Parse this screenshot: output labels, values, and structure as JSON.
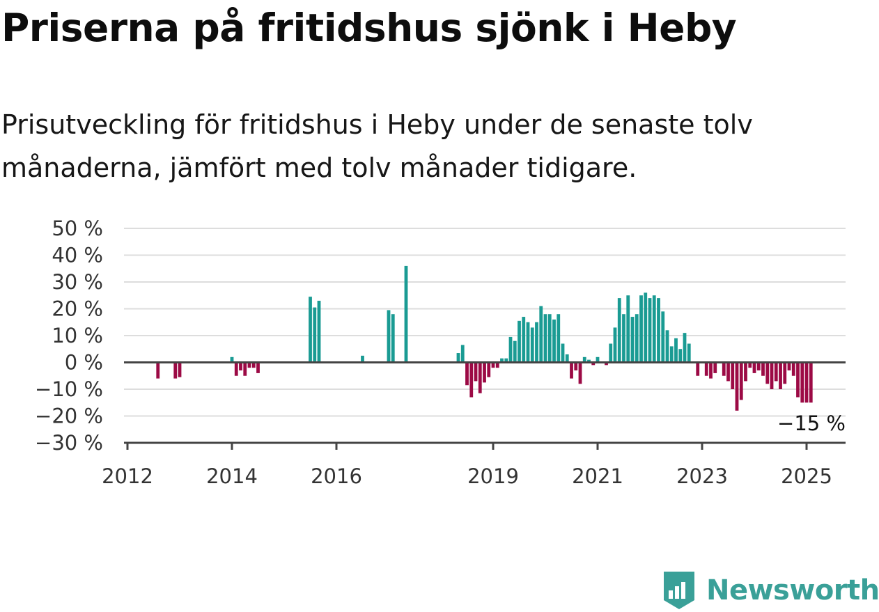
{
  "title": "Priserna på fritidshus sjönk i Heby",
  "subtitle": "Prisutveckling för fritidshus i Heby under de senaste tolv månaderna, jämfört med tolv månader tidigare.",
  "brand": "Newsworthy",
  "colors": {
    "positive": "#1a9b93",
    "negative": "#9c0a45",
    "grid": "#dddddd",
    "axis": "#444444",
    "brand": "#3aa098"
  },
  "chart_data": {
    "type": "bar",
    "x_unit": "month",
    "y_unit": "%",
    "ylim": [
      -30,
      50
    ],
    "yticks": [
      {
        "value": 50,
        "label": "50 %"
      },
      {
        "value": 40,
        "label": "40 %"
      },
      {
        "value": 30,
        "label": "30 %"
      },
      {
        "value": 20,
        "label": "20 %"
      },
      {
        "value": 10,
        "label": "10 %"
      },
      {
        "value": 0,
        "label": "0 %"
      },
      {
        "value": -10,
        "label": "−10 %"
      },
      {
        "value": -20,
        "label": "−20 %"
      },
      {
        "value": -30,
        "label": "−30 %"
      }
    ],
    "xticks": [
      {
        "date": "2012-01",
        "label": "2012"
      },
      {
        "date": "2014-01",
        "label": "2014"
      },
      {
        "date": "2016-01",
        "label": "2016"
      },
      {
        "date": "2019-01",
        "label": "2019"
      },
      {
        "date": "2021-01",
        "label": "2021"
      },
      {
        "date": "2023-01",
        "label": "2023"
      },
      {
        "date": "2025-01",
        "label": "2025"
      }
    ],
    "grid": true,
    "last_value_label": "−15 %",
    "bars": [
      {
        "date": "2012-08",
        "value": -6
      },
      {
        "date": "2012-12",
        "value": -6
      },
      {
        "date": "2013-01",
        "value": -5.5
      },
      {
        "date": "2014-01",
        "value": 2
      },
      {
        "date": "2014-02",
        "value": -5
      },
      {
        "date": "2014-03",
        "value": -3
      },
      {
        "date": "2014-04",
        "value": -5
      },
      {
        "date": "2014-05",
        "value": -2
      },
      {
        "date": "2014-06",
        "value": -2
      },
      {
        "date": "2014-07",
        "value": -4
      },
      {
        "date": "2015-07",
        "value": 24.5
      },
      {
        "date": "2015-08",
        "value": 20.5
      },
      {
        "date": "2015-09",
        "value": 23
      },
      {
        "date": "2016-07",
        "value": 2.5
      },
      {
        "date": "2017-01",
        "value": 19.5
      },
      {
        "date": "2017-02",
        "value": 18
      },
      {
        "date": "2017-05",
        "value": 36
      },
      {
        "date": "2018-05",
        "value": 3.5
      },
      {
        "date": "2018-06",
        "value": 6.5
      },
      {
        "date": "2018-07",
        "value": -8.5
      },
      {
        "date": "2018-08",
        "value": -13
      },
      {
        "date": "2018-09",
        "value": -7
      },
      {
        "date": "2018-10",
        "value": -11.5
      },
      {
        "date": "2018-11",
        "value": -7.5
      },
      {
        "date": "2018-12",
        "value": -5.5
      },
      {
        "date": "2019-01",
        "value": -2
      },
      {
        "date": "2019-02",
        "value": -2
      },
      {
        "date": "2019-03",
        "value": 1.5
      },
      {
        "date": "2019-04",
        "value": 1.5
      },
      {
        "date": "2019-05",
        "value": 9.5
      },
      {
        "date": "2019-06",
        "value": 8
      },
      {
        "date": "2019-07",
        "value": 15.5
      },
      {
        "date": "2019-08",
        "value": 17
      },
      {
        "date": "2019-09",
        "value": 15
      },
      {
        "date": "2019-10",
        "value": 13
      },
      {
        "date": "2019-11",
        "value": 15
      },
      {
        "date": "2019-12",
        "value": 21
      },
      {
        "date": "2020-01",
        "value": 18
      },
      {
        "date": "2020-02",
        "value": 18
      },
      {
        "date": "2020-03",
        "value": 16
      },
      {
        "date": "2020-04",
        "value": 18
      },
      {
        "date": "2020-05",
        "value": 7
      },
      {
        "date": "2020-06",
        "value": 3
      },
      {
        "date": "2020-07",
        "value": -6
      },
      {
        "date": "2020-08",
        "value": -3
      },
      {
        "date": "2020-09",
        "value": -8
      },
      {
        "date": "2020-10",
        "value": 2
      },
      {
        "date": "2020-11",
        "value": 1
      },
      {
        "date": "2020-12",
        "value": -1
      },
      {
        "date": "2021-01",
        "value": 2
      },
      {
        "date": "2021-03",
        "value": -1
      },
      {
        "date": "2021-04",
        "value": 7
      },
      {
        "date": "2021-05",
        "value": 13
      },
      {
        "date": "2021-06",
        "value": 24
      },
      {
        "date": "2021-07",
        "value": 18
      },
      {
        "date": "2021-08",
        "value": 25
      },
      {
        "date": "2021-09",
        "value": 17
      },
      {
        "date": "2021-10",
        "value": 18
      },
      {
        "date": "2021-11",
        "value": 25
      },
      {
        "date": "2021-12",
        "value": 26
      },
      {
        "date": "2022-01",
        "value": 24
      },
      {
        "date": "2022-02",
        "value": 25
      },
      {
        "date": "2022-03",
        "value": 24
      },
      {
        "date": "2022-04",
        "value": 19
      },
      {
        "date": "2022-05",
        "value": 12
      },
      {
        "date": "2022-06",
        "value": 6
      },
      {
        "date": "2022-07",
        "value": 9
      },
      {
        "date": "2022-08",
        "value": 5
      },
      {
        "date": "2022-09",
        "value": 11
      },
      {
        "date": "2022-10",
        "value": 7
      },
      {
        "date": "2022-12",
        "value": -5
      },
      {
        "date": "2023-02",
        "value": -5
      },
      {
        "date": "2023-03",
        "value": -6
      },
      {
        "date": "2023-04",
        "value": -4
      },
      {
        "date": "2023-06",
        "value": -5
      },
      {
        "date": "2023-07",
        "value": -7
      },
      {
        "date": "2023-08",
        "value": -10
      },
      {
        "date": "2023-09",
        "value": -18
      },
      {
        "date": "2023-10",
        "value": -14
      },
      {
        "date": "2023-11",
        "value": -7
      },
      {
        "date": "2023-12",
        "value": -2
      },
      {
        "date": "2024-01",
        "value": -4
      },
      {
        "date": "2024-02",
        "value": -3
      },
      {
        "date": "2024-03",
        "value": -5
      },
      {
        "date": "2024-04",
        "value": -8
      },
      {
        "date": "2024-05",
        "value": -10
      },
      {
        "date": "2024-06",
        "value": -7
      },
      {
        "date": "2024-07",
        "value": -10
      },
      {
        "date": "2024-08",
        "value": -8
      },
      {
        "date": "2024-09",
        "value": -3
      },
      {
        "date": "2024-10",
        "value": -5
      },
      {
        "date": "2024-11",
        "value": -13
      },
      {
        "date": "2024-12",
        "value": -15
      },
      {
        "date": "2025-01",
        "value": -15
      },
      {
        "date": "2025-02",
        "value": -15
      }
    ]
  }
}
